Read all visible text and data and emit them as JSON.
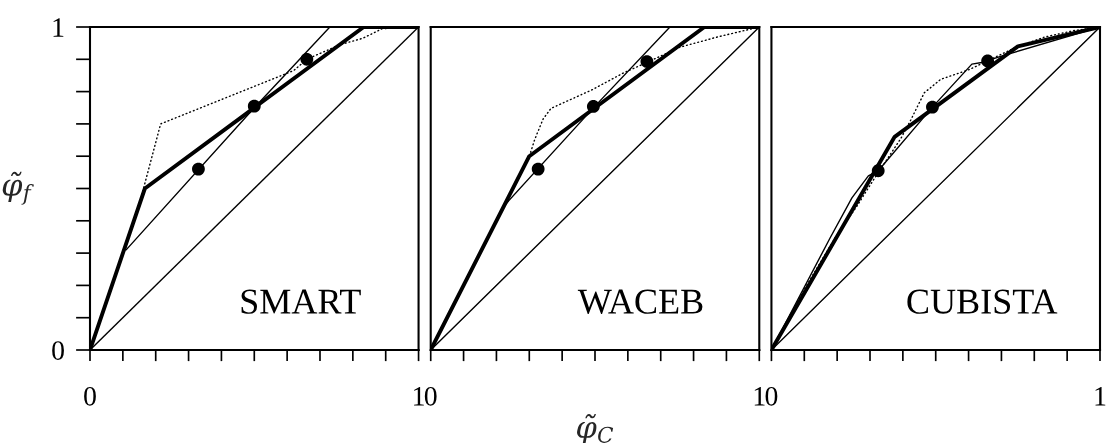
{
  "chart_data": [
    {
      "type": "line",
      "xlim": [
        0,
        1
      ],
      "ylim": [
        0,
        1
      ],
      "xticks": [
        0,
        {
          "value": 0.1,
          "label": null
        },
        {
          "value": 0.2,
          "label": null
        },
        {
          "value": 0.3,
          "label": null
        },
        {
          "value": 0.4,
          "label": null
        },
        {
          "value": 0.5,
          "label": null
        },
        {
          "value": 0.6,
          "label": null
        },
        {
          "value": 0.7,
          "label": null
        },
        {
          "value": 0.8,
          "label": null
        },
        {
          "value": 0.9,
          "label": null
        },
        1
      ],
      "yticks": [
        0,
        {
          "value": 0.1,
          "label": null
        },
        {
          "value": 0.2,
          "label": null
        },
        {
          "value": 0.3,
          "label": null
        },
        {
          "value": 0.4,
          "label": null
        },
        {
          "value": 0.5,
          "label": null
        },
        {
          "value": 0.6,
          "label": null
        },
        {
          "value": 0.7,
          "label": null
        },
        {
          "value": 0.8,
          "label": null
        },
        {
          "value": 0.9,
          "label": null
        },
        1
      ],
      "ylabel": "φ̃$_{f}$",
      "annotations": [
        "SMART"
      ],
      "series": [
        {
          "type": "line",
          "color": "#000000",
          "line_style": "solid",
          "x": [
            0,
            1
          ],
          "values": [
            0,
            1
          ]
        },
        {
          "type": "line",
          "color": "#000000",
          "line_style": "solid",
          "x": [
            0.11,
            0.5,
            0.73
          ],
          "values": [
            0.31,
            0.75,
            1.0
          ]
        },
        {
          "type": "line",
          "color": "#000000",
          "line_style": "dotted",
          "x": [
            0,
            0.155,
            0.215,
            0.62,
            0.66,
            0.76,
            0.83,
            0.89,
            1
          ],
          "values": [
            0,
            0.47,
            0.7,
            0.865,
            0.9,
            0.945,
            0.965,
            0.995,
            1
          ]
        },
        {
          "type": "line",
          "color": "#000000",
          "line_style": "solid",
          "x": [
            0,
            0.167,
            0.833,
            1
          ],
          "values": [
            0,
            0.5,
            1,
            1
          ]
        },
        {
          "type": "scatter",
          "color": "#000000",
          "marker": "circle",
          "x": [
            0.33,
            0.5,
            0.66
          ],
          "values": [
            0.56,
            0.755,
            0.9
          ]
        }
      ]
    },
    {
      "type": "line",
      "xlim": [
        0,
        1
      ],
      "ylim": [
        0,
        1
      ],
      "tick_labels": "x",
      "xticks": [
        0,
        {
          "value": 0.1,
          "label": null
        },
        {
          "value": 0.2,
          "label": null
        },
        {
          "value": 0.3,
          "label": null
        },
        {
          "value": 0.4,
          "label": null
        },
        {
          "value": 0.5,
          "label": null
        },
        {
          "value": 0.6,
          "label": null
        },
        {
          "value": 0.7,
          "label": null
        },
        {
          "value": 0.8,
          "label": null
        },
        {
          "value": 0.9,
          "label": null
        },
        1
      ],
      "xlabel": "φ̃$_{C}$",
      "annotations": [
        "WACEB"
      ],
      "series": [
        {
          "type": "line",
          "color": "#000000",
          "line_style": "solid",
          "x": [
            0,
            1
          ],
          "values": [
            0,
            1
          ]
        },
        {
          "type": "line",
          "color": "#000000",
          "line_style": "solid",
          "x": [
            0.223,
            0.5,
            0.728
          ],
          "values": [
            0.446,
            0.755,
            1.0
          ]
        },
        {
          "type": "line",
          "color": "#000000",
          "line_style": "dotted",
          "x": [
            0,
            0.3,
            0.317,
            0.342,
            0.366,
            0.49,
            0.589,
            0.649,
            0.757,
            0.876,
            1
          ],
          "values": [
            0,
            0.6,
            0.653,
            0.715,
            0.748,
            0.805,
            0.859,
            0.886,
            0.937,
            0.97,
            1
          ]
        },
        {
          "type": "line",
          "color": "#000000",
          "line_style": "solid",
          "x": [
            0,
            0.3,
            0.833,
            1
          ],
          "values": [
            0,
            0.6,
            1,
            1
          ]
        },
        {
          "type": "scatter",
          "color": "#000000",
          "marker": "circle",
          "x": [
            0.327,
            0.495,
            0.658
          ],
          "values": [
            0.56,
            0.754,
            0.893
          ]
        }
      ]
    },
    {
      "type": "line",
      "xlim": [
        0,
        1
      ],
      "ylim": [
        0,
        1
      ],
      "tick_labels": "x",
      "xticks": [
        0,
        {
          "value": 0.1,
          "label": null
        },
        {
          "value": 0.2,
          "label": null
        },
        {
          "value": 0.3,
          "label": null
        },
        {
          "value": 0.4,
          "label": null
        },
        {
          "value": 0.5,
          "label": null
        },
        {
          "value": 0.6,
          "label": null
        },
        {
          "value": 0.7,
          "label": null
        },
        {
          "value": 0.8,
          "label": null
        },
        {
          "value": 0.9,
          "label": null
        },
        1
      ],
      "annotations": [
        "CUBISTA"
      ],
      "series": [
        {
          "type": "line",
          "color": "#000000",
          "line_style": "solid",
          "x": [
            0,
            1
          ],
          "values": [
            0,
            1
          ]
        },
        {
          "type": "line",
          "color": "#000000",
          "line_style": "solid",
          "x": [
            0,
            0.178,
            0.245,
            0.295,
            0.325,
            0.49,
            0.61,
            0.64,
            0.7,
            1
          ],
          "values": [
            0,
            0.346,
            0.471,
            0.539,
            0.555,
            0.752,
            0.885,
            0.89,
            0.91,
            1
          ]
        },
        {
          "type": "line",
          "color": "#000000",
          "line_style": "dotted",
          "x": [
            0,
            0.097,
            0.196,
            0.26,
            0.315,
            0.394,
            0.424,
            0.465,
            0.515,
            0.579,
            0.604,
            0.75,
            0.832,
            0.921,
            1
          ],
          "values": [
            0,
            0.183,
            0.351,
            0.445,
            0.534,
            0.655,
            0.712,
            0.796,
            0.838,
            0.86,
            0.869,
            0.94,
            0.969,
            0.989,
            1
          ]
        },
        {
          "type": "line",
          "color": "#000000",
          "line_style": "solid",
          "x": [
            0,
            0.375,
            0.75,
            1
          ],
          "values": [
            0,
            0.66,
            0.94,
            1
          ]
        },
        {
          "type": "scatter",
          "color": "#000000",
          "marker": "circle",
          "x": [
            0.325,
            0.49,
            0.658
          ],
          "values": [
            0.555,
            0.752,
            0.895
          ]
        }
      ]
    }
  ]
}
